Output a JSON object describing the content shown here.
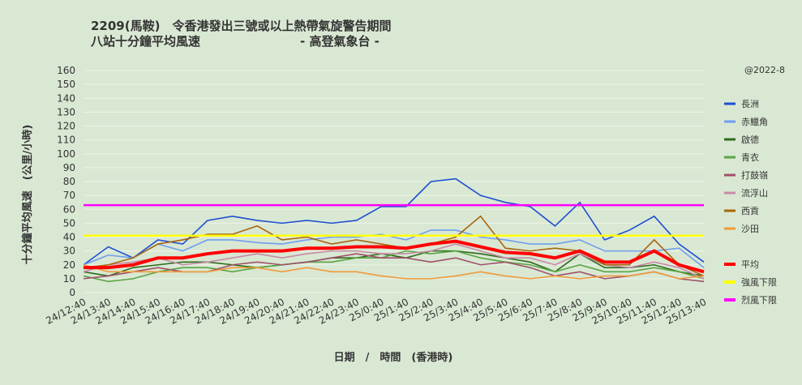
{
  "chart_data": {
    "type": "line",
    "title": [
      "2209(馬鞍)　令香港發出三號或以上熱帶氣旋警告期間",
      "八站十分鐘平均風速"
    ],
    "source": "- 高登氣象台 -",
    "watermark": "@2022-8",
    "ylabel": "十分鐘平均風速　(公里/小時)",
    "xlabel": "日期　/　時間　(香港時)",
    "ylim": [
      0,
      160
    ],
    "yticks": [
      0,
      10,
      20,
      30,
      40,
      50,
      60,
      70,
      80,
      90,
      100,
      110,
      120,
      130,
      140,
      150,
      160
    ],
    "grid": true,
    "categories": [
      "24/12:40",
      "24/13:40",
      "24/14:40",
      "24/15:40",
      "24/16:40",
      "24/17:40",
      "24/18:40",
      "24/19:40",
      "24/20:40",
      "24/21:40",
      "24/22:40",
      "24/23:40",
      "25/0:40",
      "25/1:40",
      "25/2:40",
      "25/3:40",
      "25/4:40",
      "25/5:40",
      "25/6:40",
      "25/7:40",
      "25/8:40",
      "25/9:40",
      "25/10:40",
      "25/11:40",
      "25/12:40",
      "25/13:40"
    ],
    "series": [
      {
        "name": "長洲",
        "color": "#1f4fd1",
        "values": [
          20,
          33,
          25,
          38,
          35,
          52,
          55,
          52,
          50,
          52,
          50,
          52,
          62,
          62,
          80,
          82,
          70,
          65,
          62,
          48,
          65,
          38,
          45,
          55,
          35,
          22
        ]
      },
      {
        "name": "赤鱲角",
        "color": "#6f9ef0",
        "values": [
          20,
          27,
          25,
          35,
          30,
          38,
          38,
          36,
          35,
          38,
          40,
          40,
          42,
          38,
          45,
          45,
          40,
          38,
          35,
          35,
          38,
          30,
          30,
          30,
          32,
          18
        ]
      },
      {
        "name": "啟德",
        "color": "#2e6b1e",
        "values": [
          15,
          12,
          18,
          20,
          22,
          22,
          20,
          18,
          20,
          22,
          25,
          25,
          28,
          25,
          30,
          30,
          28,
          25,
          22,
          15,
          28,
          18,
          18,
          20,
          15,
          12
        ]
      },
      {
        "name": "青衣",
        "color": "#5aa545",
        "values": [
          12,
          8,
          10,
          15,
          18,
          18,
          15,
          18,
          20,
          22,
          22,
          25,
          25,
          30,
          28,
          30,
          25,
          22,
          20,
          15,
          20,
          15,
          15,
          18,
          15,
          10
        ]
      },
      {
        "name": "打鼓嶺",
        "color": "#a0506a",
        "values": [
          10,
          12,
          15,
          18,
          15,
          15,
          20,
          22,
          20,
          22,
          25,
          28,
          25,
          25,
          22,
          25,
          20,
          22,
          18,
          12,
          15,
          10,
          12,
          15,
          10,
          8
        ]
      },
      {
        "name": "流浮山",
        "color": "#c98aa8",
        "values": [
          15,
          20,
          22,
          25,
          20,
          22,
          25,
          28,
          25,
          28,
          30,
          30,
          28,
          28,
          30,
          35,
          30,
          25,
          25,
          20,
          28,
          20,
          18,
          22,
          18,
          10
        ]
      },
      {
        "name": "西貢",
        "color": "#a8660e",
        "values": [
          18,
          20,
          25,
          35,
          38,
          42,
          42,
          48,
          38,
          40,
          35,
          38,
          35,
          32,
          35,
          40,
          55,
          32,
          30,
          32,
          30,
          20,
          20,
          38,
          20,
          12
        ]
      },
      {
        "name": "沙田",
        "color": "#f09a3a",
        "values": [
          20,
          15,
          15,
          15,
          15,
          15,
          18,
          18,
          15,
          18,
          15,
          15,
          12,
          10,
          10,
          12,
          15,
          12,
          10,
          12,
          10,
          12,
          12,
          15,
          10,
          12
        ]
      },
      {
        "name": "平均",
        "color": "#ff0000",
        "values": [
          18,
          18,
          20,
          25,
          25,
          28,
          30,
          30,
          30,
          32,
          32,
          33,
          33,
          32,
          35,
          37,
          33,
          29,
          28,
          25,
          30,
          22,
          22,
          30,
          20,
          15
        ]
      }
    ],
    "thresholds": [
      {
        "name": "強風下限",
        "value": 41,
        "color": "#ffff00"
      },
      {
        "name": "烈風下限",
        "value": 63,
        "color": "#ff00ff"
      }
    ]
  }
}
